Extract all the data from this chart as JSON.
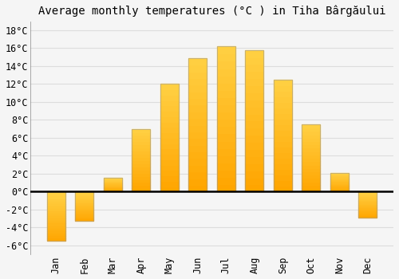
{
  "title": "Average monthly temperatures (°C ) in Tiha Bârgăului",
  "months": [
    "Jan",
    "Feb",
    "Mar",
    "Apr",
    "May",
    "Jun",
    "Jul",
    "Aug",
    "Sep",
    "Oct",
    "Nov",
    "Dec"
  ],
  "values": [
    -5.5,
    -3.3,
    1.5,
    7.0,
    12.0,
    14.9,
    16.2,
    15.8,
    12.5,
    7.5,
    2.1,
    -2.9
  ],
  "bar_color_top": "#FFB52E",
  "bar_color_bottom": "#FFA500",
  "bar_edge_color": "#999999",
  "background_color": "#f5f5f5",
  "grid_color": "#dddddd",
  "ylim": [
    -7,
    19
  ],
  "yticks": [
    -6,
    -4,
    -2,
    0,
    2,
    4,
    6,
    8,
    10,
    12,
    14,
    16,
    18
  ],
  "title_fontsize": 10,
  "tick_fontsize": 8.5,
  "zero_line_color": "#000000",
  "bar_width": 0.65
}
